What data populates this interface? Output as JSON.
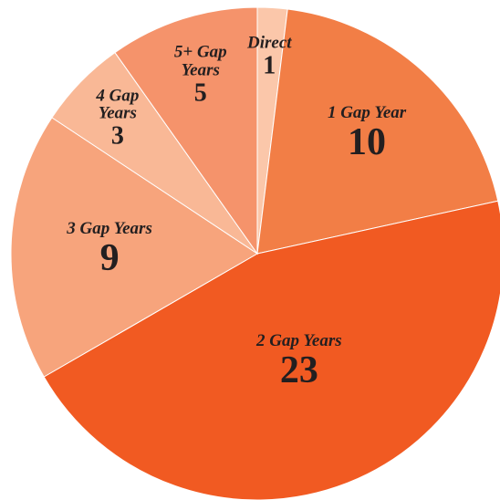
{
  "chart_data": {
    "type": "pie",
    "categories": [
      "Direct",
      "1 Gap Year",
      "2 Gap Years",
      "3 Gap Years",
      "4 Gap Years",
      "5+ Gap Years"
    ],
    "values": [
      1,
      10,
      23,
      9,
      3,
      5
    ],
    "colors": [
      "#fbc7aa",
      "#f27e46",
      "#f15a22",
      "#f7a47c",
      "#f9b896",
      "#f5936b"
    ]
  }
}
